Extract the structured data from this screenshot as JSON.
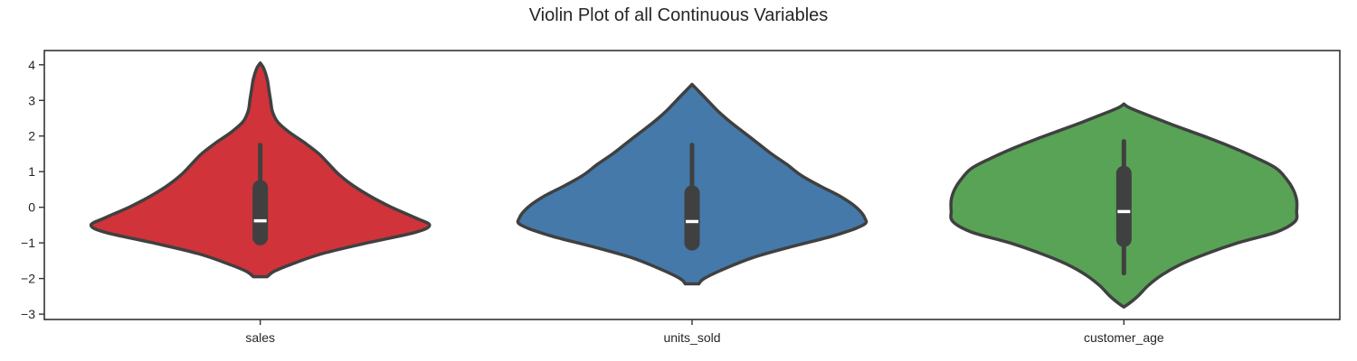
{
  "chart_data": {
    "type": "violin",
    "title": "Violin Plot of all Continuous Variables",
    "xlabel": "",
    "ylabel": "",
    "ylim": [
      -3.15,
      4.4
    ],
    "yticks": [
      "4",
      "3",
      "2",
      "1",
      "0",
      "−1",
      "−2",
      "−3"
    ],
    "grid": false,
    "legend": "none",
    "categories": [
      "sales",
      "units_sold",
      "customer_age"
    ],
    "violins": [
      {
        "category": "sales",
        "color": "#D0333A",
        "density_profile": [
          [
            4.05,
            0.0
          ],
          [
            3.9,
            0.02
          ],
          [
            3.6,
            0.04
          ],
          [
            3.3,
            0.05
          ],
          [
            3.0,
            0.06
          ],
          [
            2.7,
            0.07
          ],
          [
            2.4,
            0.1
          ],
          [
            2.1,
            0.17
          ],
          [
            1.8,
            0.26
          ],
          [
            1.5,
            0.34
          ],
          [
            1.2,
            0.4
          ],
          [
            0.9,
            0.46
          ],
          [
            0.6,
            0.54
          ],
          [
            0.3,
            0.64
          ],
          [
            0.0,
            0.76
          ],
          [
            -0.3,
            0.9
          ],
          [
            -0.5,
            0.98
          ],
          [
            -0.7,
            0.9
          ],
          [
            -1.0,
            0.62
          ],
          [
            -1.3,
            0.36
          ],
          [
            -1.6,
            0.18
          ],
          [
            -1.8,
            0.08
          ],
          [
            -1.95,
            0.04
          ]
        ],
        "box": {
          "min": -0.9,
          "q1": -0.85,
          "median": -0.38,
          "q3": 0.55,
          "max": 1.75
        }
      },
      {
        "category": "units_sold",
        "color": "#4479AA",
        "density_profile": [
          [
            3.45,
            0.0
          ],
          [
            3.3,
            0.03
          ],
          [
            3.0,
            0.09
          ],
          [
            2.7,
            0.15
          ],
          [
            2.4,
            0.22
          ],
          [
            2.1,
            0.3
          ],
          [
            1.8,
            0.38
          ],
          [
            1.5,
            0.46
          ],
          [
            1.2,
            0.55
          ],
          [
            0.9,
            0.63
          ],
          [
            0.6,
            0.74
          ],
          [
            0.3,
            0.86
          ],
          [
            0.0,
            0.95
          ],
          [
            -0.3,
            1.0
          ],
          [
            -0.5,
            0.99
          ],
          [
            -0.8,
            0.82
          ],
          [
            -1.1,
            0.58
          ],
          [
            -1.4,
            0.36
          ],
          [
            -1.7,
            0.2
          ],
          [
            -2.0,
            0.07
          ],
          [
            -2.15,
            0.04
          ]
        ],
        "box": {
          "min": -1.1,
          "q1": -1.0,
          "median": -0.4,
          "q3": 0.4,
          "max": 1.75
        }
      },
      {
        "category": "customer_age",
        "color": "#58A356",
        "density_profile": [
          [
            2.9,
            0.0
          ],
          [
            2.8,
            0.03
          ],
          [
            2.6,
            0.13
          ],
          [
            2.3,
            0.29
          ],
          [
            2.0,
            0.46
          ],
          [
            1.7,
            0.62
          ],
          [
            1.4,
            0.76
          ],
          [
            1.1,
            0.88
          ],
          [
            0.8,
            0.94
          ],
          [
            0.5,
            0.98
          ],
          [
            0.2,
            1.0
          ],
          [
            -0.1,
            1.0
          ],
          [
            -0.4,
            0.99
          ],
          [
            -0.7,
            0.88
          ],
          [
            -1.0,
            0.66
          ],
          [
            -1.3,
            0.48
          ],
          [
            -1.6,
            0.33
          ],
          [
            -1.9,
            0.22
          ],
          [
            -2.2,
            0.14
          ],
          [
            -2.5,
            0.08
          ],
          [
            -2.7,
            0.03
          ],
          [
            -2.8,
            0.0
          ]
        ],
        "box": {
          "min": -1.85,
          "q1": -0.9,
          "median": -0.12,
          "q3": 0.95,
          "max": 1.85
        }
      }
    ]
  }
}
